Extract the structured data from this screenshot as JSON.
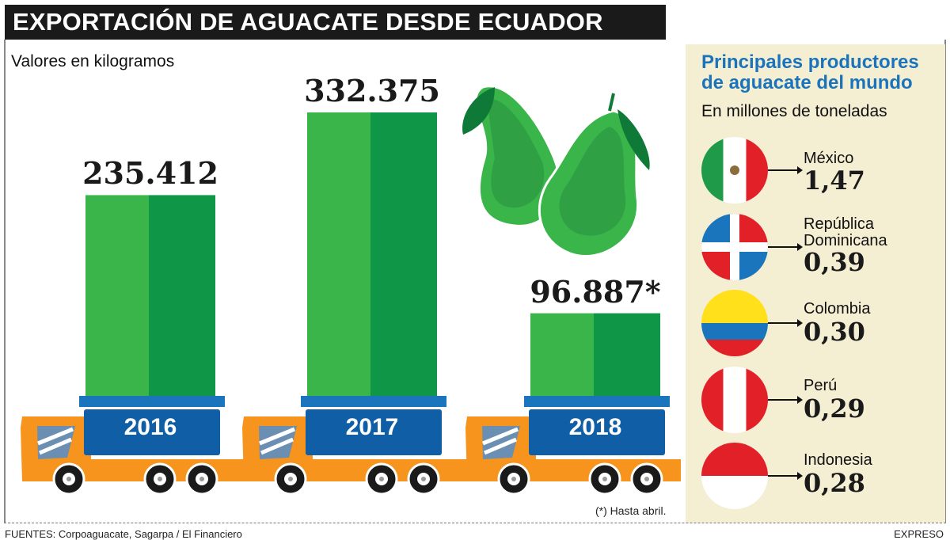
{
  "title": "EXPORTACIÓN DE AGUACATE DESDE ECUADOR",
  "chart_data": {
    "type": "bar",
    "title": "EXPORTACIÓN DE AGUACATE DESDE ECUADOR",
    "ylabel": "Valores en kilogramos",
    "categories": [
      "2016",
      "2017",
      "2018"
    ],
    "values": [
      235412,
      332375,
      96887
    ],
    "labels": [
      "235.412",
      "332.375",
      "96.887*"
    ],
    "note": "(*) Hasta abril.",
    "colors": {
      "bar_light": "#39b54a",
      "bar_dark": "#0f9647",
      "lid": "#1b75bc",
      "box": "#105ea5",
      "truck": "#f7941d"
    }
  },
  "footer": {
    "source": "FUENTES: Corpoaguacate, Sagarpa / El Financiero",
    "brand": "EXPRESO"
  },
  "panel": {
    "title_line1": "Principales productores",
    "title_line2": "de aguacate del mundo",
    "subtitle": "En millones de toneladas",
    "producers": [
      {
        "name": "México",
        "value": "1,47",
        "flag": "mexico"
      },
      {
        "name": "República Dominicana",
        "name_line1": "República",
        "name_line2": "Dominicana",
        "value": "0,39",
        "flag": "dominican-republic"
      },
      {
        "name": "Colombia",
        "value": "0,30",
        "flag": "colombia"
      },
      {
        "name": "Perú",
        "value": "0,29",
        "flag": "peru"
      },
      {
        "name": "Indonesia",
        "value": "0,28",
        "flag": "indonesia"
      }
    ]
  }
}
